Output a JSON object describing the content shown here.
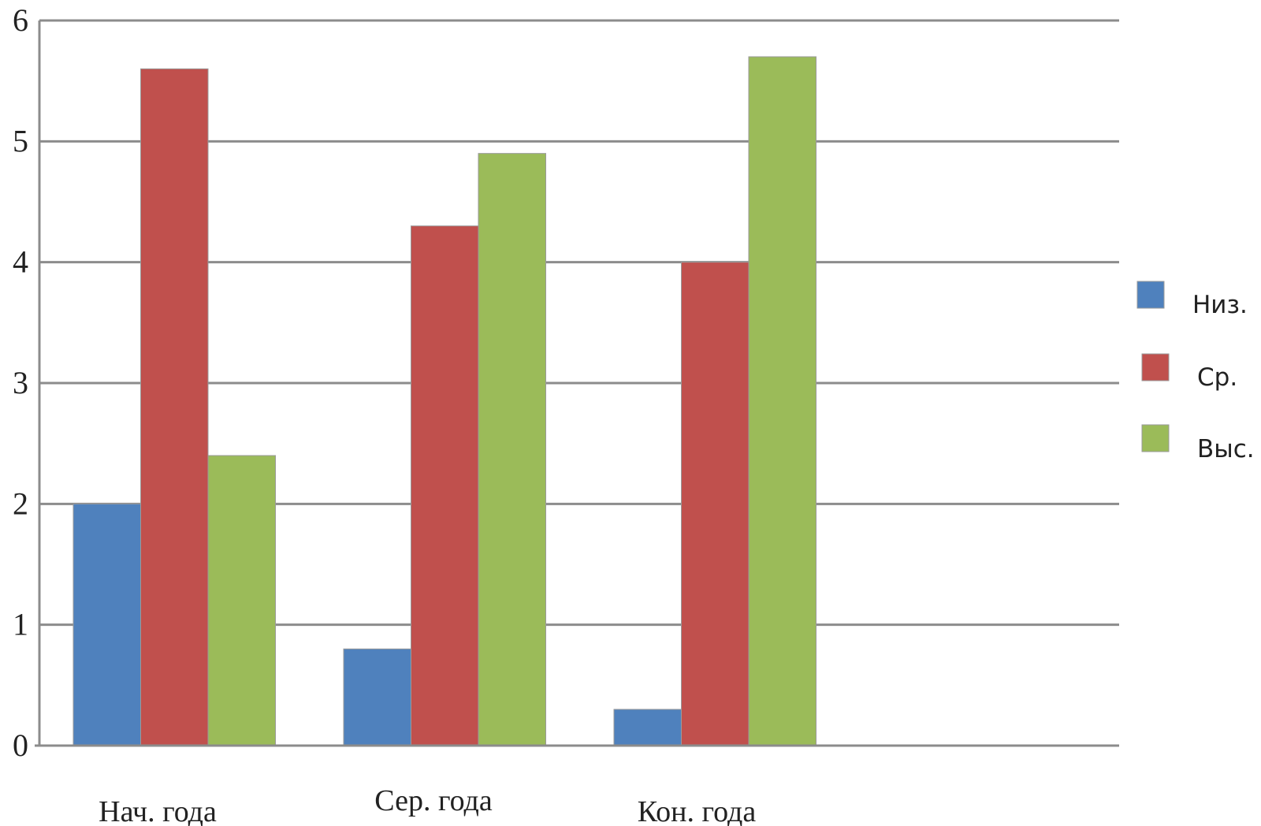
{
  "chart_data": {
    "type": "bar",
    "categories": [
      "Нач. года",
      "Сер. года",
      "Кон. года"
    ],
    "series": [
      {
        "name": "Низ.",
        "values": [
          2.0,
          0.8,
          0.3
        ],
        "color": "#4f81bd"
      },
      {
        "name": "Ср.",
        "values": [
          5.6,
          4.3,
          4.0
        ],
        "color": "#c0504d"
      },
      {
        "name": "Выс.",
        "values": [
          2.4,
          4.9,
          5.7
        ],
        "color": "#9bbb59"
      }
    ],
    "yticks": [
      "0",
      "1",
      "2",
      "3",
      "4",
      "5",
      "6"
    ],
    "ylim": [
      0,
      6
    ],
    "grid": true,
    "legend_position": "right",
    "title": "",
    "xlabel": "",
    "ylabel": ""
  }
}
